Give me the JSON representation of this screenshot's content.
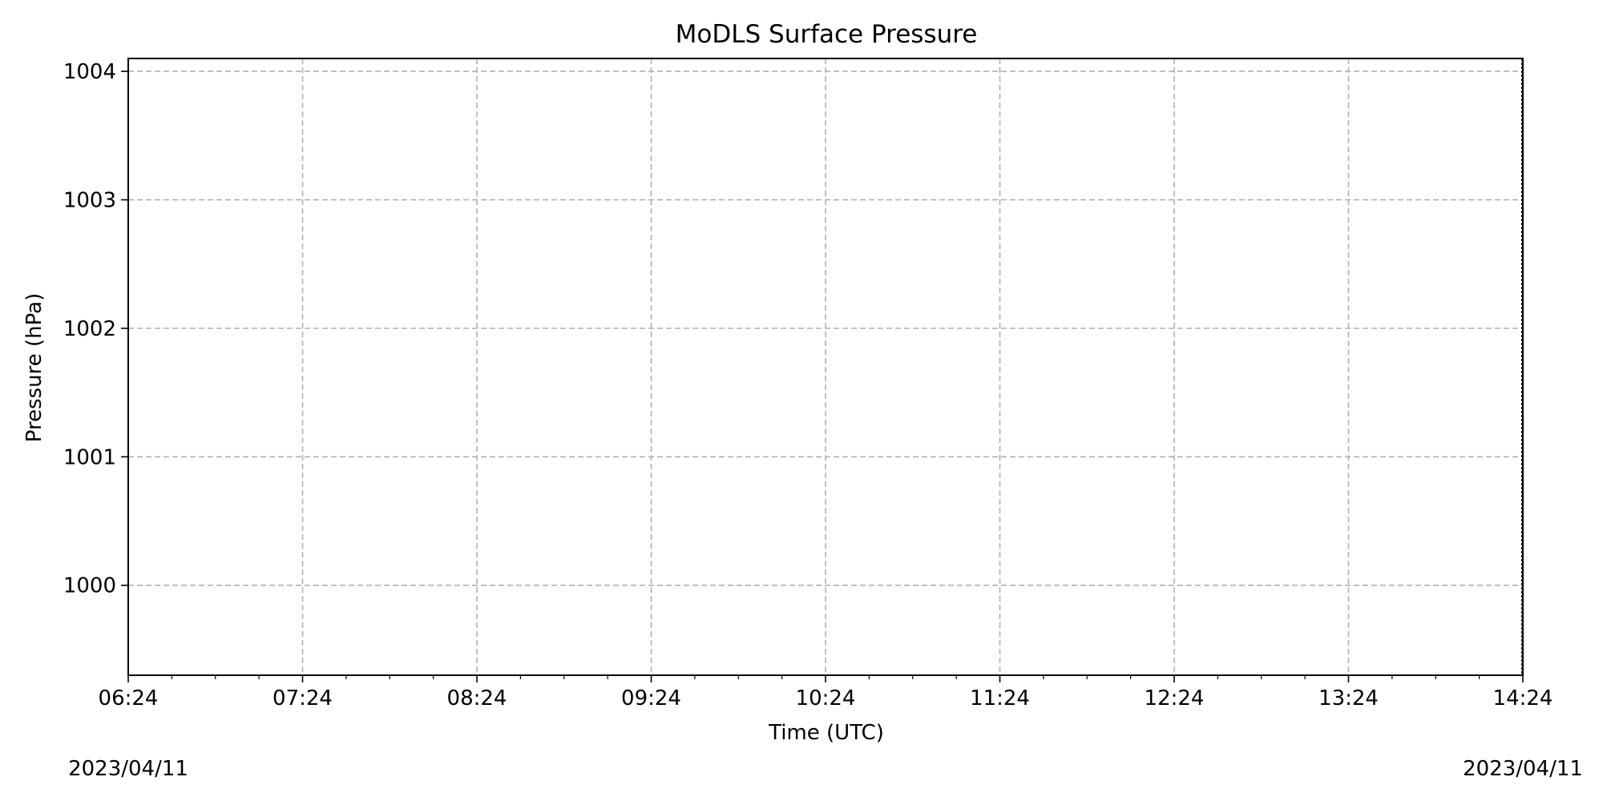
{
  "chart_data": {
    "type": "line",
    "title": "MoDLS Surface Pressure",
    "xlabel": "Time (UTC)",
    "ylabel": "Pressure (hPa)",
    "x_range": [
      "06:24",
      "14:24"
    ],
    "x_ticks": [
      "06:24",
      "07:24",
      "08:24",
      "09:24",
      "10:24",
      "11:24",
      "12:24",
      "13:24",
      "14:24"
    ],
    "y_ticks": [
      1000,
      1001,
      1002,
      1003,
      1004
    ],
    "ylim": [
      999.3,
      1004.1
    ],
    "grid": true,
    "date_start": "2023/04/11",
    "date_end": "2023/04/11",
    "series": [
      {
        "values": []
      }
    ]
  }
}
